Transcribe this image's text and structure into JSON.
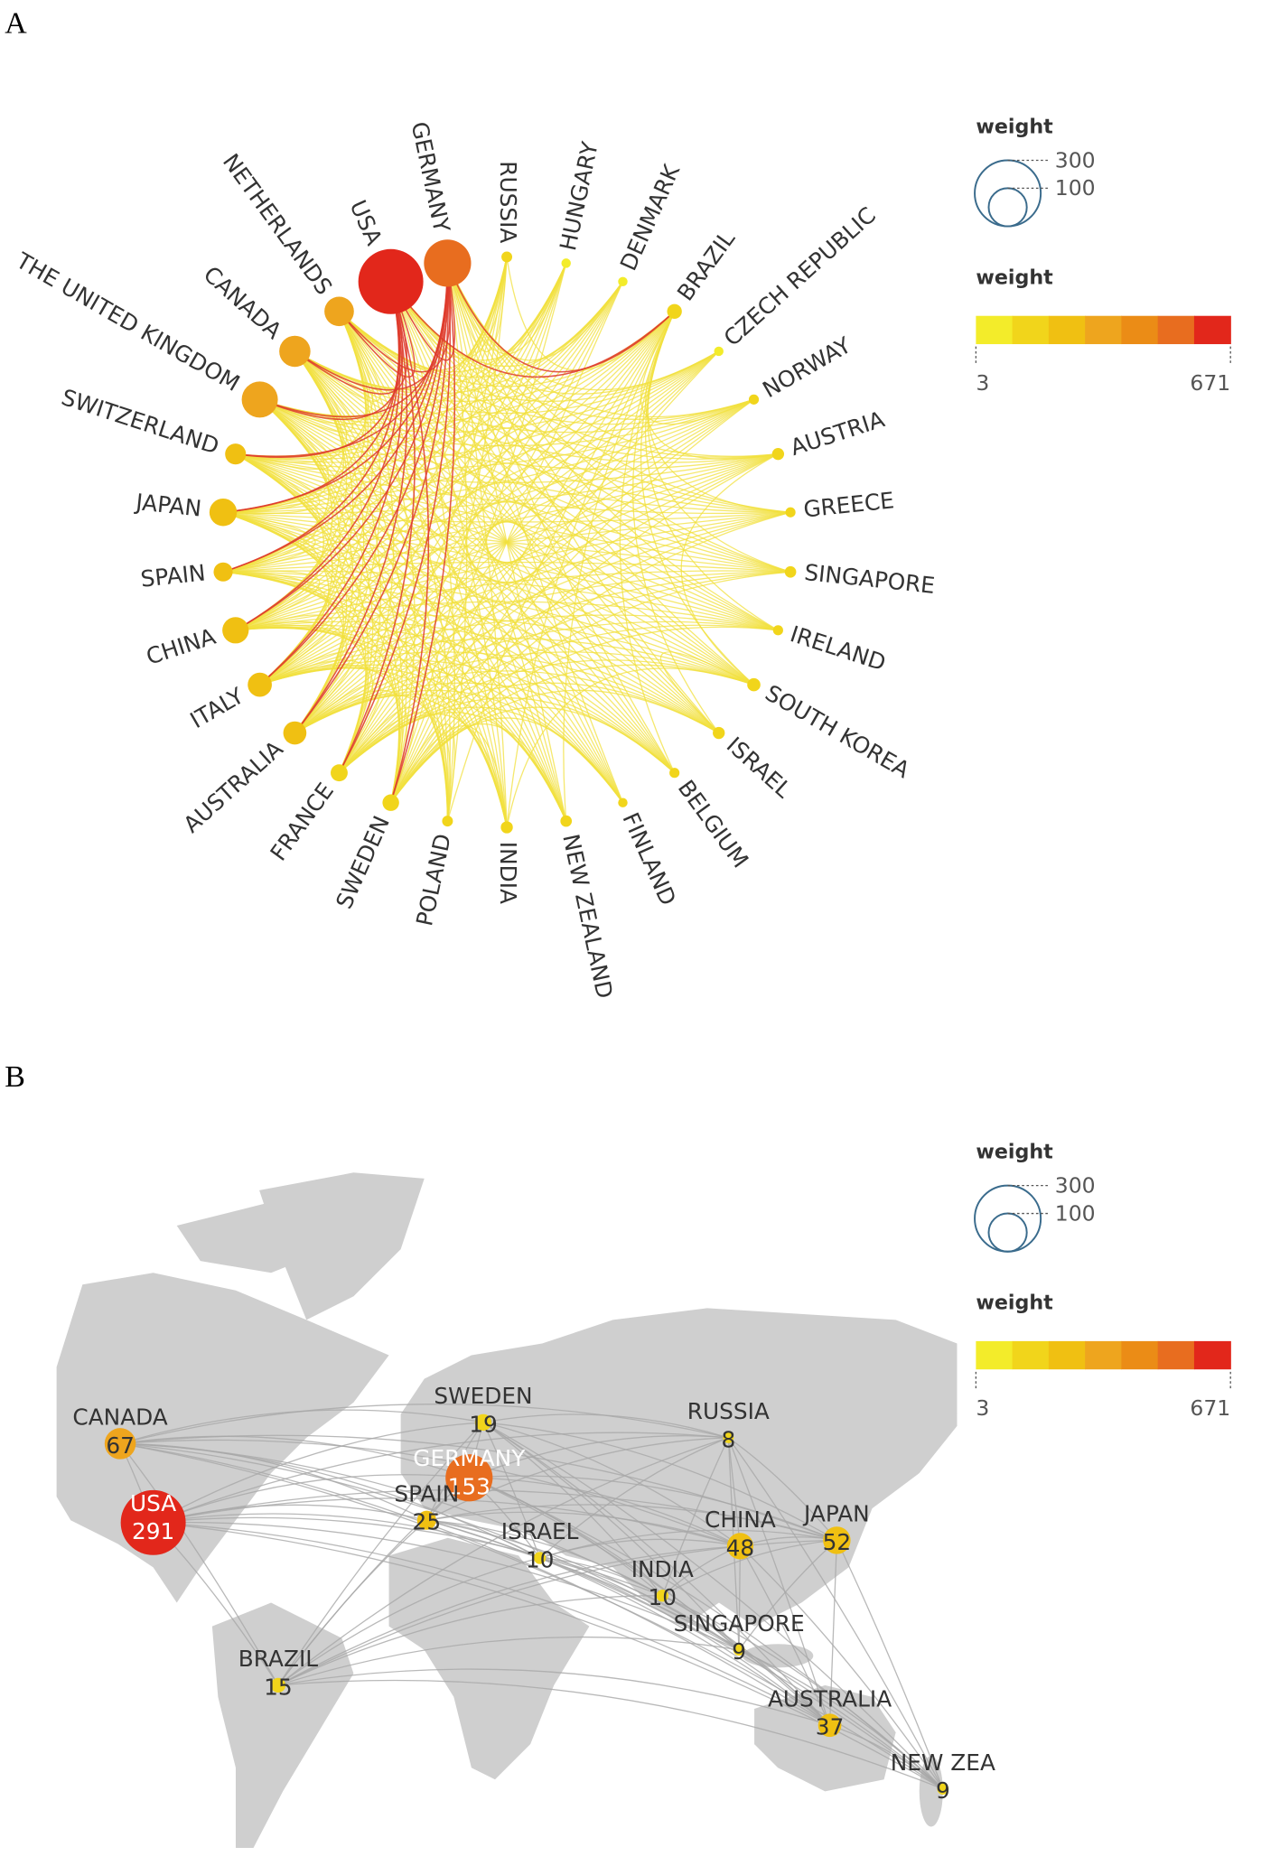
{
  "chart_data": [
    {
      "type": "network",
      "panel_label": "A",
      "nodes": [
        "RUSSIA",
        "HUNGARY",
        "DENMARK",
        "BRAZIL",
        "CZECH REPUBLIC",
        "NORWAY",
        "AUSTRIA",
        "GREECE",
        "SINGAPORE",
        "IRELAND",
        "SOUTH KOREA",
        "ISRAEL",
        "BELGIUM",
        "FINLAND",
        "NEW ZEALAND",
        "INDIA",
        "POLAND",
        "SWEDEN",
        "FRANCE",
        "AUSTRALIA",
        "ITALY",
        "CHINA",
        "SPAIN",
        "JAPAN",
        "SWITZERLAND",
        "THE UNITED KINGDOM",
        "CANADA",
        "NETHERLANDS",
        "USA",
        "GERMANY"
      ],
      "values": [
        8,
        5,
        5,
        15,
        5,
        7,
        10,
        7,
        9,
        7,
        12,
        10,
        7,
        6,
        9,
        10,
        8,
        19,
        20,
        37,
        40,
        48,
        25,
        52,
        30,
        90,
        67,
        60,
        291,
        153
      ],
      "size_legend": {
        "title": "weight",
        "ticks": [
          300,
          100
        ]
      },
      "color_legend": {
        "title": "weight",
        "min": 3,
        "max": 671,
        "colors": [
          "#f3ec2a",
          "#f1d51b",
          "#f0c012",
          "#eea51e",
          "#eb8c16",
          "#e86d1f",
          "#e2271b"
        ]
      }
    },
    {
      "type": "map",
      "panel_label": "B",
      "nodes": [
        "CANADA",
        "USA",
        "SWEDEN",
        "GERMANY",
        "SPAIN",
        "ISRAEL",
        "RUSSIA",
        "CHINA",
        "JAPAN",
        "INDIA",
        "SINGAPORE",
        "BRAZIL",
        "AUSTRALIA",
        "NEW ZEA"
      ],
      "values": [
        67,
        291,
        19,
        153,
        25,
        10,
        8,
        48,
        52,
        10,
        9,
        15,
        37,
        9
      ],
      "size_legend": {
        "title": "weight",
        "ticks": [
          300,
          100
        ]
      },
      "color_legend": {
        "title": "weight",
        "min": 3,
        "max": 671,
        "colors": [
          "#f3ec2a",
          "#f1d51b",
          "#f0c012",
          "#eea51e",
          "#eb8c16",
          "#e86d1f",
          "#e2271b"
        ]
      }
    }
  ]
}
